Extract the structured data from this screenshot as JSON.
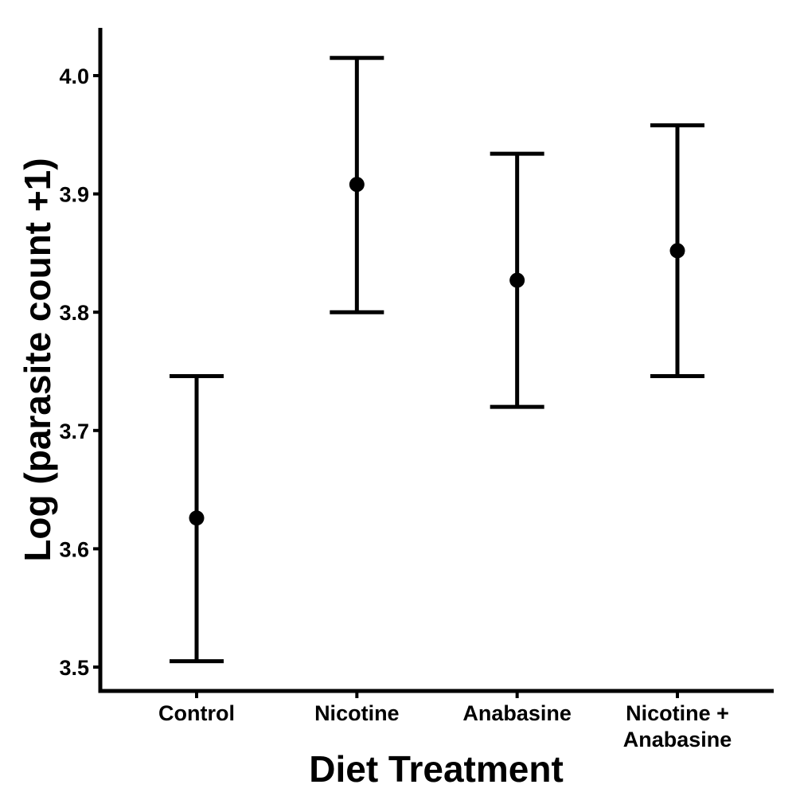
{
  "chart_data": {
    "type": "errorbar",
    "xlabel": "Diet Treatment",
    "ylabel": "Log (parasite count +1)",
    "categories": [
      [
        "Control"
      ],
      [
        "Nicotine"
      ],
      [
        "Anabasine"
      ],
      [
        "Nicotine +",
        "Anabasine"
      ]
    ],
    "means": [
      3.626,
      3.908,
      3.827,
      3.852
    ],
    "lower": [
      3.505,
      3.8,
      3.72,
      3.746
    ],
    "upper": [
      3.746,
      4.015,
      3.934,
      3.958
    ],
    "ylim": [
      3.48,
      4.04
    ],
    "yticks": [
      3.5,
      3.6,
      3.7,
      3.8,
      3.9,
      4.0
    ],
    "ytick_labels": [
      "3.5",
      "3.6",
      "3.7",
      "3.8",
      "3.9",
      "4.0"
    ],
    "grid": false,
    "legend": "none",
    "color": "#000000"
  }
}
